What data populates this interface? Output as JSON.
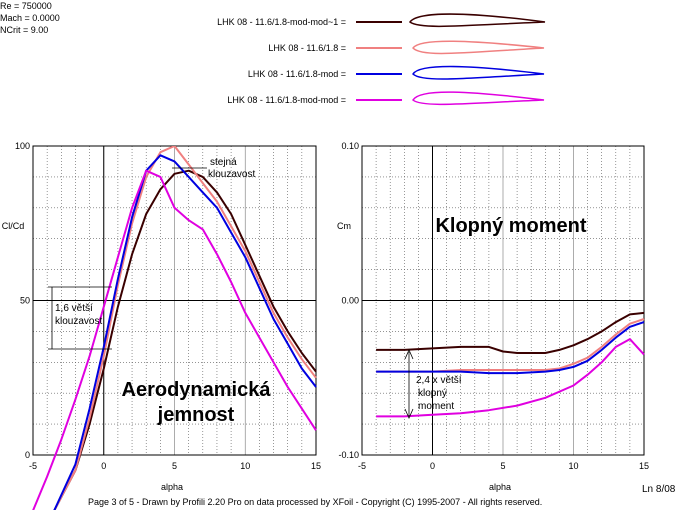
{
  "params": {
    "re": "Re = 750000",
    "mach": "Mach = 0.0000",
    "ncrit": "NCrit = 9.00"
  },
  "legend": [
    {
      "label": "LHK  08 - 11.6/1.8-mod-mod~1 =",
      "color": "#3a0000"
    },
    {
      "label": "LHK  08 - 11.6/1.8 =",
      "color": "#f08080"
    },
    {
      "label": "LHK  08 - 11.6/1.8-mod =",
      "color": "#0000e0"
    },
    {
      "label": "LHK  08 - 11.6/1.8-mod-mod =",
      "color": "#e000e0"
    }
  ],
  "chart_data": [
    {
      "type": "line",
      "xlabel": "alpha",
      "ylabel": "Cl/Cd",
      "xlim": [
        -5,
        15
      ],
      "ylim": [
        0,
        100
      ],
      "xticks": [
        "-5",
        "0",
        "5",
        "10",
        "15"
      ],
      "yticks": [
        "0",
        "50",
        "100"
      ],
      "grid": true,
      "series": [
        {
          "name": "LHK  08 - 11.6/1.8-mod-mod~1",
          "color": "#3a0000",
          "x": [
            -3.5,
            -2,
            -1,
            0,
            1,
            2,
            3,
            4,
            5,
            6,
            7,
            8,
            9,
            10,
            11,
            12,
            13,
            14,
            15
          ],
          "y": [
            -18,
            -5,
            10,
            28,
            48,
            65,
            78,
            86,
            91,
            92,
            90,
            85,
            78,
            68,
            58,
            48,
            40,
            33,
            27
          ]
        },
        {
          "name": "LHK  08 - 11.6/1.8",
          "color": "#f08080",
          "x": [
            -3.5,
            -2,
            -1,
            0,
            1,
            2,
            3,
            4,
            5,
            6,
            7,
            8,
            9,
            10,
            11,
            12,
            13,
            14,
            15
          ],
          "y": [
            -18,
            -5,
            12,
            32,
            55,
            75,
            90,
            98,
            100,
            94,
            88,
            82,
            74,
            66,
            56,
            46,
            38,
            31,
            25
          ]
        },
        {
          "name": "LHK  08 - 11.6/1.8-mod",
          "color": "#0000e0",
          "x": [
            -3.5,
            -2,
            -1,
            0,
            1,
            2,
            3,
            4,
            5,
            6,
            7,
            8,
            9,
            10,
            11,
            12,
            13,
            14,
            15
          ],
          "y": [
            -18,
            -3,
            15,
            35,
            57,
            77,
            92,
            97,
            95,
            90,
            85,
            80,
            72,
            64,
            54,
            44,
            36,
            28,
            22
          ]
        },
        {
          "name": "LHK  08 - 11.6/1.8-mod-mod",
          "color": "#e000e0",
          "x": [
            -5,
            -4,
            -3,
            -2,
            -1,
            0,
            1,
            2,
            3,
            4,
            5,
            6,
            7,
            8,
            9,
            10,
            11,
            12,
            13,
            14,
            15
          ],
          "y": [
            -18,
            -7,
            5,
            18,
            32,
            48,
            64,
            80,
            92,
            90,
            80,
            76,
            73,
            65,
            56,
            46,
            38,
            30,
            22,
            15,
            8
          ]
        }
      ],
      "annotations": {
        "same_ratio": [
          "stejná",
          "klouzavost"
        ],
        "ratio_gain": [
          "1,6 větší",
          "klouzavost"
        ],
        "big_label": [
          "Aerodynamická",
          "jemnost"
        ]
      }
    },
    {
      "type": "line",
      "xlabel": "alpha",
      "ylabel": "Cm",
      "xlim": [
        -5,
        15
      ],
      "ylim": [
        -0.1,
        0.1
      ],
      "xticks": [
        "-5",
        "0",
        "5",
        "10",
        "15"
      ],
      "yticks": [
        "-0.10",
        "0.00",
        "0.10"
      ],
      "grid": true,
      "series": [
        {
          "name": "LHK  08 - 11.6/1.8-mod-mod~1",
          "color": "#3a0000",
          "x": [
            -4,
            -2,
            0,
            2,
            4,
            5,
            6,
            8,
            9,
            10,
            11,
            12,
            13,
            14,
            15
          ],
          "y": [
            -0.032,
            -0.032,
            -0.031,
            -0.03,
            -0.03,
            -0.033,
            -0.034,
            -0.034,
            -0.032,
            -0.029,
            -0.025,
            -0.02,
            -0.014,
            -0.009,
            -0.008
          ]
        },
        {
          "name": "LHK  08 - 11.6/1.8",
          "color": "#f08080",
          "x": [
            -4,
            -2,
            0,
            2,
            4,
            6,
            8,
            9,
            10,
            11,
            12,
            13,
            14,
            15
          ],
          "y": [
            -0.046,
            -0.046,
            -0.046,
            -0.045,
            -0.045,
            -0.045,
            -0.045,
            -0.044,
            -0.041,
            -0.037,
            -0.03,
            -0.022,
            -0.015,
            -0.012
          ]
        },
        {
          "name": "LHK  08 - 11.6/1.8-mod",
          "color": "#0000e0",
          "x": [
            -4,
            -2,
            0,
            2,
            4,
            6,
            8,
            9,
            10,
            11,
            12,
            13,
            14,
            15
          ],
          "y": [
            -0.046,
            -0.046,
            -0.046,
            -0.046,
            -0.047,
            -0.047,
            -0.046,
            -0.045,
            -0.043,
            -0.039,
            -0.032,
            -0.024,
            -0.017,
            -0.014
          ]
        },
        {
          "name": "LHK  08 - 11.6/1.8-mod-mod",
          "color": "#e000e0",
          "x": [
            -4,
            -2,
            0,
            2,
            4,
            6,
            8,
            10,
            11,
            12,
            13,
            14,
            15
          ],
          "y": [
            -0.075,
            -0.075,
            -0.074,
            -0.073,
            -0.071,
            -0.068,
            -0.063,
            -0.055,
            -0.048,
            -0.04,
            -0.03,
            -0.025,
            -0.035
          ]
        }
      ],
      "annotations": {
        "moment_gain": [
          "2,4 x větší",
          "klopný",
          "moment"
        ],
        "big_label": [
          "Klopný  moment"
        ]
      }
    }
  ],
  "footer": {
    "left_alpha": "alpha",
    "right_alpha": "alpha",
    "credits": "Page 3 of 5   -   Drawn by Profili 2.20 Pro on data processed by  XFoil - Copyright (C) 1995-2007 - All rights reserved.",
    "corner": "Ln 8/08"
  }
}
